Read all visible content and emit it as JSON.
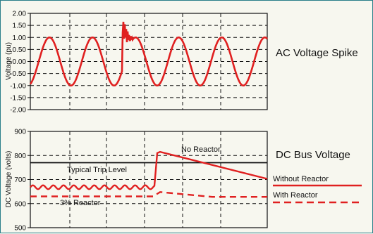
{
  "colors": {
    "series": "#e02020",
    "grid": "#111111",
    "frame": "#2a7f8a",
    "background": "#f7f7ef"
  },
  "chart_data": [
    {
      "type": "line",
      "title": "AC Voltage Spike",
      "ylabel": "Voltage (pu)",
      "ylim": [
        -2.0,
        2.0
      ],
      "yticks": [
        "2.00",
        "1.50",
        "1.00",
        "0.50",
        "0.00",
        "-0.50",
        "-1.00",
        "-1.50",
        "-2.00"
      ],
      "grid": true,
      "series": [
        {
          "amplitude": 1.0,
          "cycles": 5.5,
          "spike": {
            "at_cycle": 2.0,
            "peak": 1.65,
            "min": 0.8
          }
        }
      ]
    },
    {
      "type": "line",
      "title": "DC Bus Voltage",
      "ylabel": "DC Voltage (volts)",
      "ylim": [
        500,
        900
      ],
      "yticks": [
        "900",
        "800",
        "700",
        "600",
        "500"
      ],
      "grid": true,
      "annotations": {
        "trip_level": {
          "label": "Typical Trip Level",
          "value": 770
        },
        "reactor_note": "3% Reactor",
        "no_reactor": "No Reactor"
      },
      "series": [
        {
          "name": "Without Reactor",
          "style": "solid",
          "ripple_level": 668,
          "ripple_amp": 8,
          "spike_peak": 815,
          "end_value": 703
        },
        {
          "name": "With Reactor",
          "style": "dashed",
          "base_level": 630,
          "spike_peak": 648,
          "end_value": 628
        }
      ]
    }
  ]
}
